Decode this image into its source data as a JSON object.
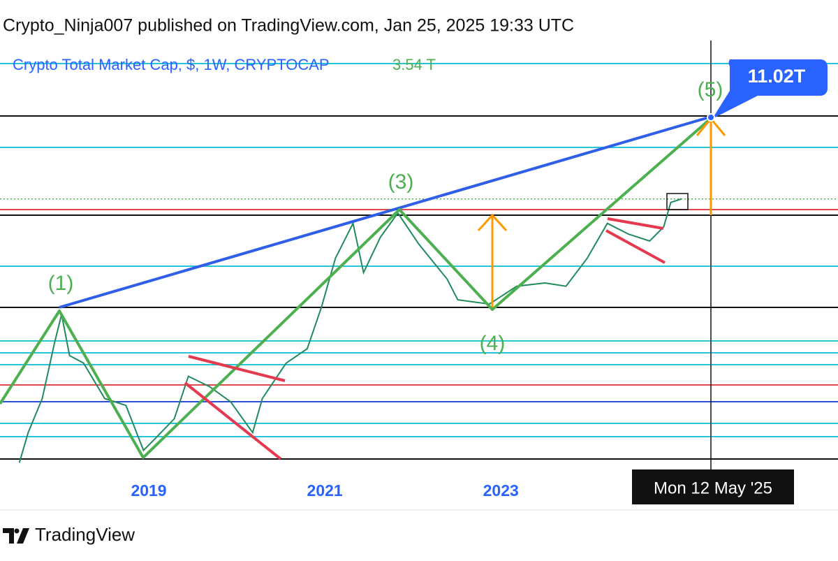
{
  "header": "Crypto_Ninja007 published on TradingView.com, Jan 25, 2025 19:33 UTC",
  "footer": "TradingView",
  "chart_data": {
    "type": "line",
    "title": "Crypto Total Market Cap, $, 1W, CRYPTOCAP",
    "last_price": {
      "value": 3.54,
      "label": "3.54 T"
    },
    "target": {
      "value": 11.02,
      "label": "11.02T"
    },
    "crosshair_label": "Mon 12 May '25",
    "wave_labels": [
      "(1)",
      "(3)",
      "(4)",
      "(5)"
    ],
    "log_scale": true,
    "color": "#1f8a5b",
    "x": [
      2017.53,
      2017.63,
      2017.79,
      2017.93,
      2018.01,
      2018.1,
      2018.26,
      2018.5,
      2018.74,
      2018.94,
      2019.06,
      2019.29,
      2019.45,
      2019.69,
      2019.93,
      2020.18,
      2020.29,
      2020.56,
      2020.8,
      2020.96,
      2021.12,
      2021.32,
      2021.44,
      2021.63,
      2021.83,
      2022.07,
      2022.39,
      2022.51,
      2022.87,
      2023.18,
      2023.5,
      2023.74,
      2023.98,
      2024.21,
      2024.45,
      2024.69,
      2024.85,
      2024.93,
      2025.05
    ],
    "values": [
      0.09,
      0.137,
      0.22,
      0.48,
      0.71,
      0.4,
      0.36,
      0.22,
      0.2,
      0.107,
      0.124,
      0.166,
      0.3,
      0.26,
      0.21,
      0.137,
      0.22,
      0.36,
      0.44,
      0.78,
      1.55,
      2.52,
      1.27,
      2.07,
      2.91,
      1.88,
      1.16,
      0.87,
      0.82,
      1.05,
      1.1,
      1.05,
      1.55,
      2.52,
      2.17,
      1.97,
      2.4,
      3.37,
      3.54
    ],
    "xlim": [
      2017.31,
      2026.83
    ],
    "ylim": [
      0.0796,
      31.5
    ],
    "xticks": [
      2019,
      2021,
      2023
    ]
  }
}
